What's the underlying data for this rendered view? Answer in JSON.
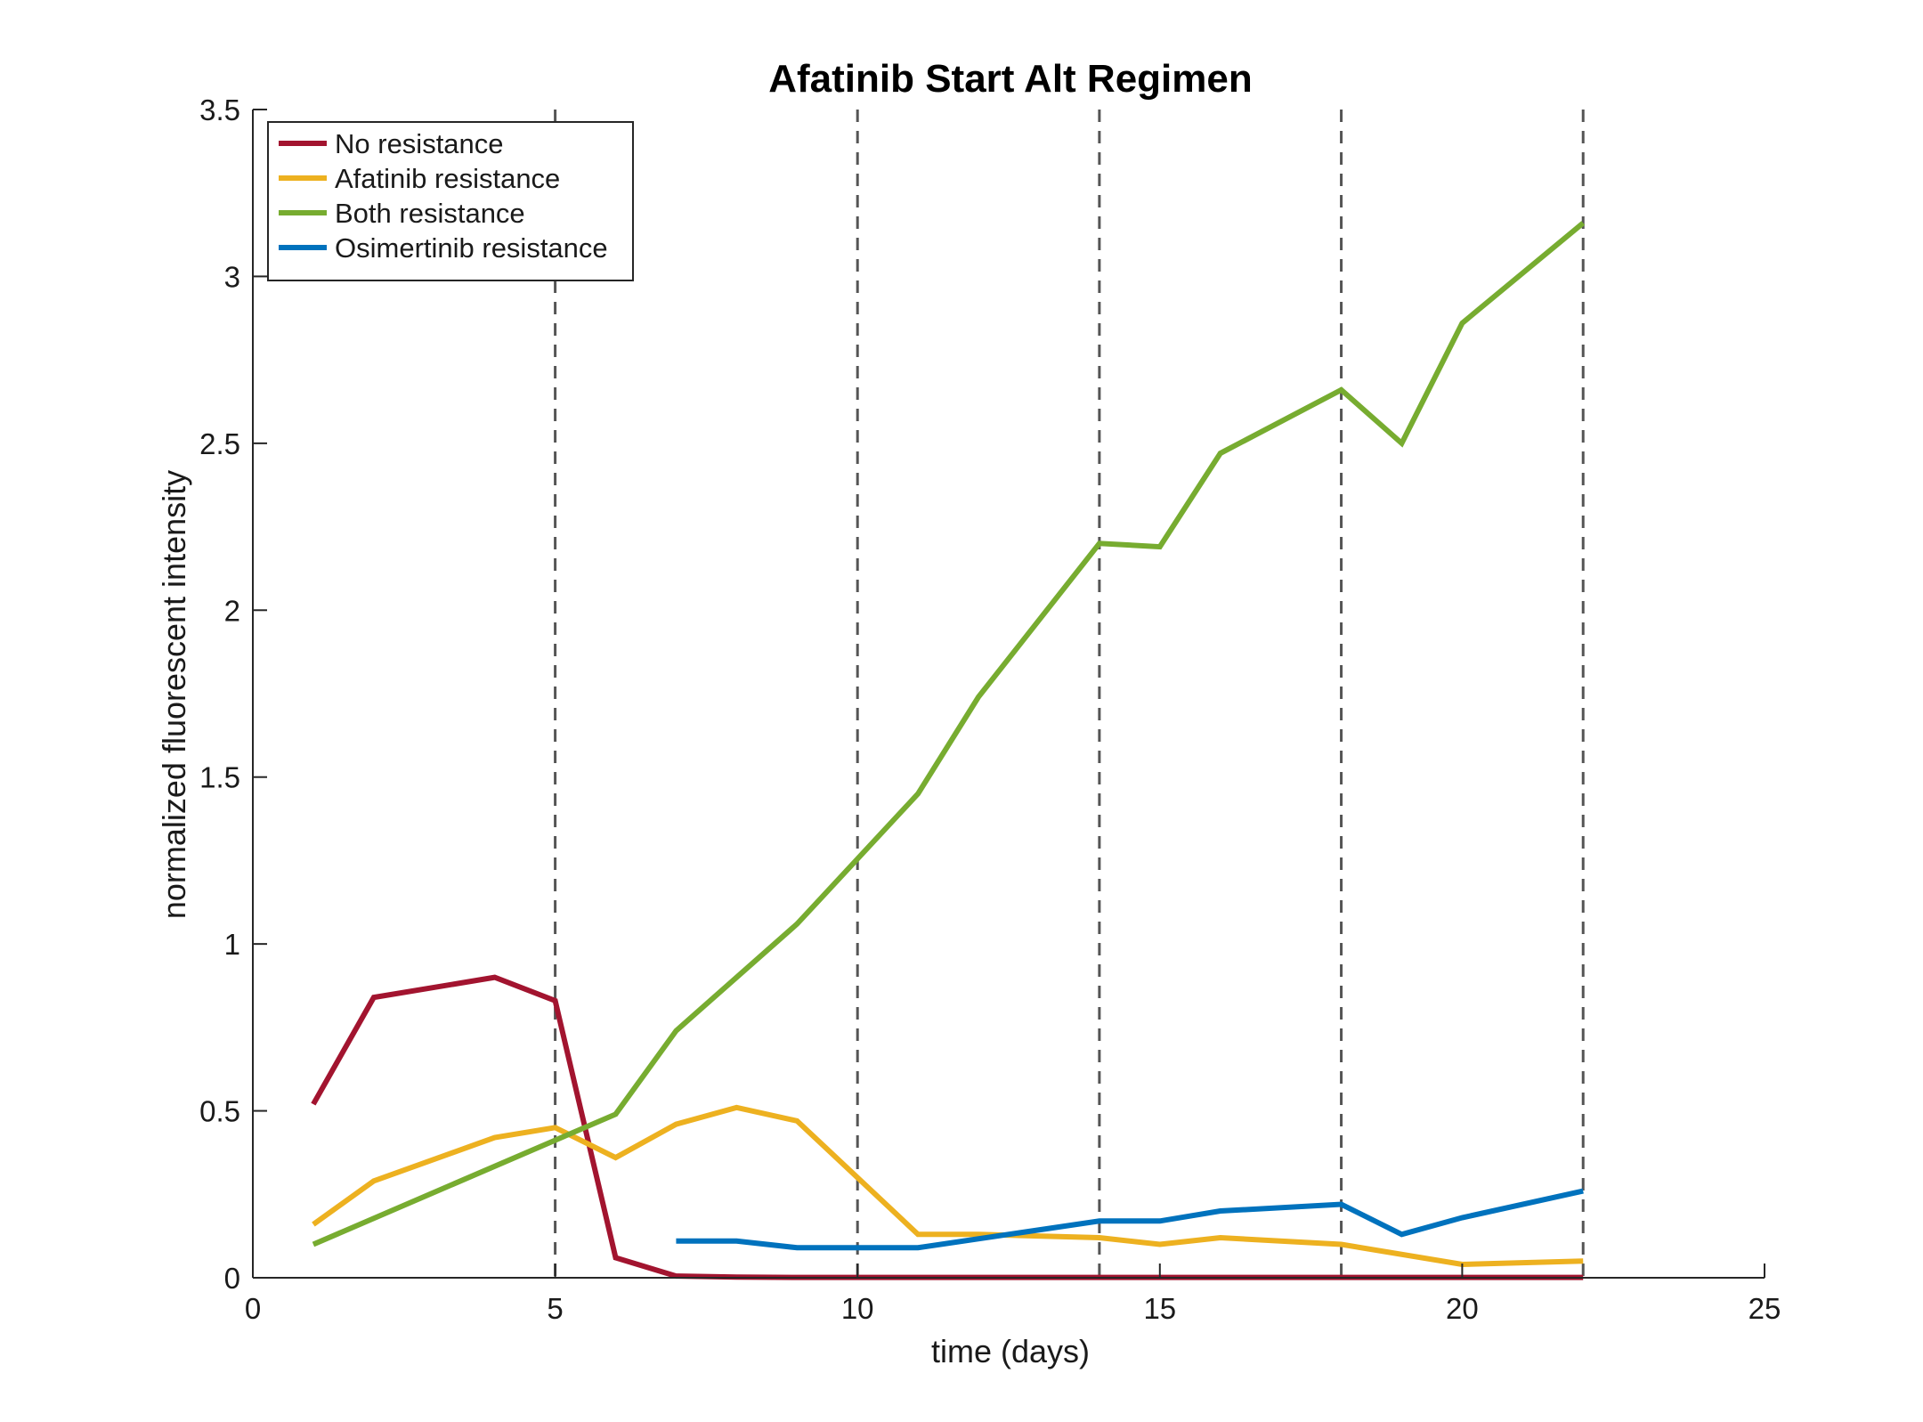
{
  "chart_data": {
    "type": "line",
    "title": "Afatinib Start Alt Regimen",
    "xlabel": "time (days)",
    "ylabel": "normalized fluorescent intensity",
    "xlim": [
      0,
      25
    ],
    "ylim": [
      0,
      3.5
    ],
    "x_ticks": [
      0,
      5,
      10,
      15,
      20,
      25
    ],
    "y_ticks": [
      0,
      0.5,
      1,
      1.5,
      2,
      2.5,
      3,
      3.5
    ],
    "x_tick_labels": [
      "0",
      "5",
      "10",
      "15",
      "20",
      "25"
    ],
    "y_tick_labels": [
      "0",
      "0.5",
      "1",
      "1.5",
      "2",
      "2.5",
      "3",
      "3.5"
    ],
    "grid": false,
    "legend_position": "top-left",
    "vertical_dashed_lines": [
      5,
      10,
      14,
      18,
      22
    ],
    "series": [
      {
        "name": "No resistance",
        "color": "#A2142F",
        "x": [
          1,
          2,
          4,
          5,
          6,
          7,
          8,
          9,
          10,
          11,
          12,
          13,
          14,
          15,
          16,
          17,
          18,
          19,
          20,
          21,
          22
        ],
        "y": [
          0.52,
          0.84,
          0.9,
          0.83,
          0.06,
          0.005,
          0.002,
          0.001,
          0.001,
          0.001,
          0.001,
          0.001,
          0.001,
          0.001,
          0.001,
          0.001,
          0.001,
          0.001,
          0.001,
          0.001,
          0.001
        ]
      },
      {
        "name": "Afatinib resistance",
        "color": "#EDB120",
        "x": [
          1,
          2,
          4,
          5,
          6,
          7,
          8,
          9,
          11,
          12,
          14,
          15,
          16,
          18,
          20,
          22
        ],
        "y": [
          0.16,
          0.29,
          0.42,
          0.45,
          0.36,
          0.46,
          0.51,
          0.47,
          0.13,
          0.13,
          0.12,
          0.1,
          0.12,
          0.1,
          0.04,
          0.05
        ]
      },
      {
        "name": "Both resistance",
        "color": "#77AC30",
        "x": [
          1,
          6,
          7,
          9,
          11,
          12,
          14,
          15,
          16,
          18,
          19,
          20,
          22
        ],
        "y": [
          0.1,
          0.49,
          0.74,
          1.06,
          1.45,
          1.74,
          2.2,
          2.19,
          2.47,
          2.66,
          2.5,
          2.86,
          3.16
        ]
      },
      {
        "name": "Osimertinib resistance",
        "color": "#0072BD",
        "x": [
          7,
          8,
          9,
          11,
          14,
          15,
          16,
          18,
          19,
          20,
          22
        ],
        "y": [
          0.11,
          0.11,
          0.09,
          0.09,
          0.17,
          0.17,
          0.2,
          0.22,
          0.13,
          0.18,
          0.26
        ]
      }
    ]
  }
}
